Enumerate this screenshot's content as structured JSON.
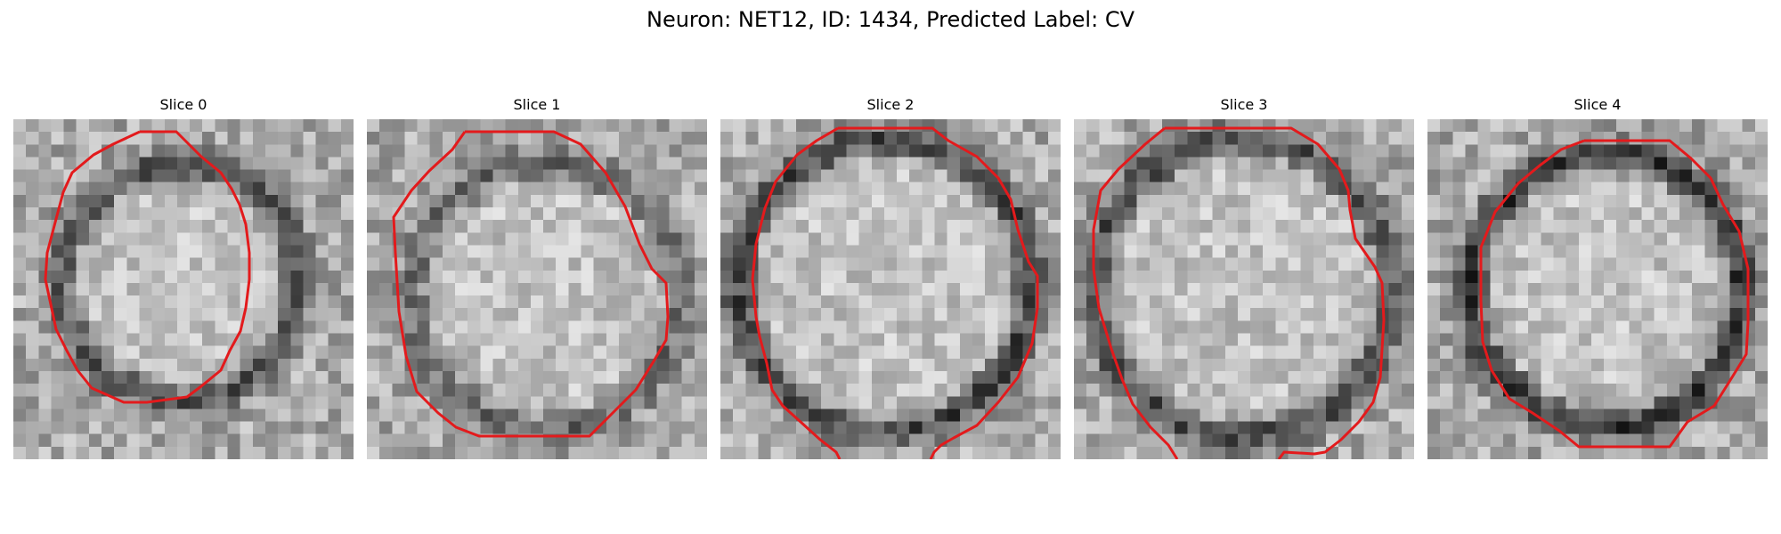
{
  "figure": {
    "title": "Neuron: NET12, ID: 1434, Predicted Label: CV",
    "contour_color": "#e31a1c",
    "colormap": "grayscale",
    "panels": [
      {
        "title": "Slice 0",
        "ring_darkness": 0.55
      },
      {
        "title": "Slice 1",
        "ring_darkness": 0.4
      },
      {
        "title": "Slice 2",
        "ring_darkness": 0.65
      },
      {
        "title": "Slice 3",
        "ring_darkness": 0.6
      },
      {
        "title": "Slice 4",
        "ring_darkness": 0.75
      }
    ]
  }
}
